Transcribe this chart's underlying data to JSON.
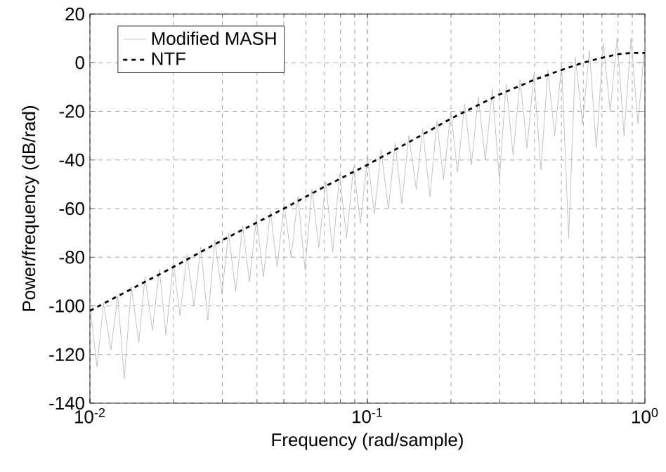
{
  "chart_data": {
    "type": "line",
    "xlabel": "Frequency (rad/sample)",
    "ylabel": "Power/frequency (dB/rad)",
    "log": "x",
    "xlim": [
      0.01,
      1
    ],
    "ylim": [
      -140,
      20
    ],
    "xticks": [
      {
        "value": 0.01,
        "label": "10$^{-2}$"
      },
      {
        "value": 0.1,
        "label": "10$^{-1}$"
      },
      {
        "value": 1,
        "label": "10$^{0}$"
      }
    ],
    "yticks": [
      -140,
      -120,
      -100,
      -80,
      -60,
      -40,
      -20,
      0,
      20
    ],
    "grid": true,
    "legend": "top left",
    "series": [
      {
        "name": "Modified MASH",
        "color": "#b4b4b4",
        "line_style": "solid",
        "x": [
          0.01,
          0.0106,
          0.0112,
          0.0119,
          0.0126,
          0.0133,
          0.0141,
          0.015,
          0.0158,
          0.0168,
          0.0178,
          0.0188,
          0.02,
          0.0211,
          0.0224,
          0.0237,
          0.0251,
          0.0266,
          0.0282,
          0.0299,
          0.0316,
          0.0335,
          0.0355,
          0.0376,
          0.0398,
          0.0422,
          0.0447,
          0.0473,
          0.0501,
          0.0531,
          0.0562,
          0.0596,
          0.0631,
          0.0668,
          0.0708,
          0.075,
          0.0794,
          0.0841,
          0.0891,
          0.0944,
          0.1,
          0.106,
          0.112,
          0.119,
          0.126,
          0.133,
          0.141,
          0.15,
          0.158,
          0.168,
          0.178,
          0.188,
          0.2,
          0.211,
          0.224,
          0.237,
          0.251,
          0.266,
          0.282,
          0.299,
          0.316,
          0.335,
          0.355,
          0.376,
          0.398,
          0.422,
          0.447,
          0.473,
          0.501,
          0.531,
          0.562,
          0.596,
          0.631,
          0.668,
          0.708,
          0.75,
          0.794,
          0.841,
          0.891,
          0.944,
          1.0
        ],
        "values": [
          -100,
          -125,
          -99,
          -118,
          -96,
          -130,
          -92,
          -115,
          -88,
          -110,
          -85,
          -112,
          -82,
          -104,
          -79,
          -100,
          -76,
          -106,
          -73,
          -95,
          -70,
          -94,
          -67,
          -90,
          -64,
          -88,
          -61,
          -84,
          -58,
          -80,
          -55,
          -85,
          -52,
          -76,
          -49,
          -78,
          -46,
          -72,
          -43,
          -66,
          -39,
          -62,
          -36,
          -60,
          -33,
          -58,
          -30,
          -52,
          -27,
          -55,
          -24,
          -48,
          -20,
          -45,
          -17,
          -42,
          -14,
          -40,
          -11,
          -48,
          -9,
          -38,
          -7,
          -35,
          -5,
          -44,
          -3,
          -30,
          -1,
          -72,
          2,
          -25,
          5,
          -35,
          8,
          -20,
          10,
          -30,
          10,
          -25,
          8
        ]
      },
      {
        "name": "NTF",
        "color": "#000000",
        "line_style": "dashed",
        "x": [
          0.01,
          0.02,
          0.03,
          0.05,
          0.07,
          0.1,
          0.15,
          0.2,
          0.3,
          0.4,
          0.5,
          0.6,
          0.7,
          0.8,
          0.9,
          1.0
        ],
        "values": [
          -102,
          -84,
          -73,
          -60,
          -51,
          -42,
          -31,
          -23,
          -13,
          -7,
          -3,
          0,
          2,
          3.5,
          4,
          4
        ]
      }
    ]
  }
}
